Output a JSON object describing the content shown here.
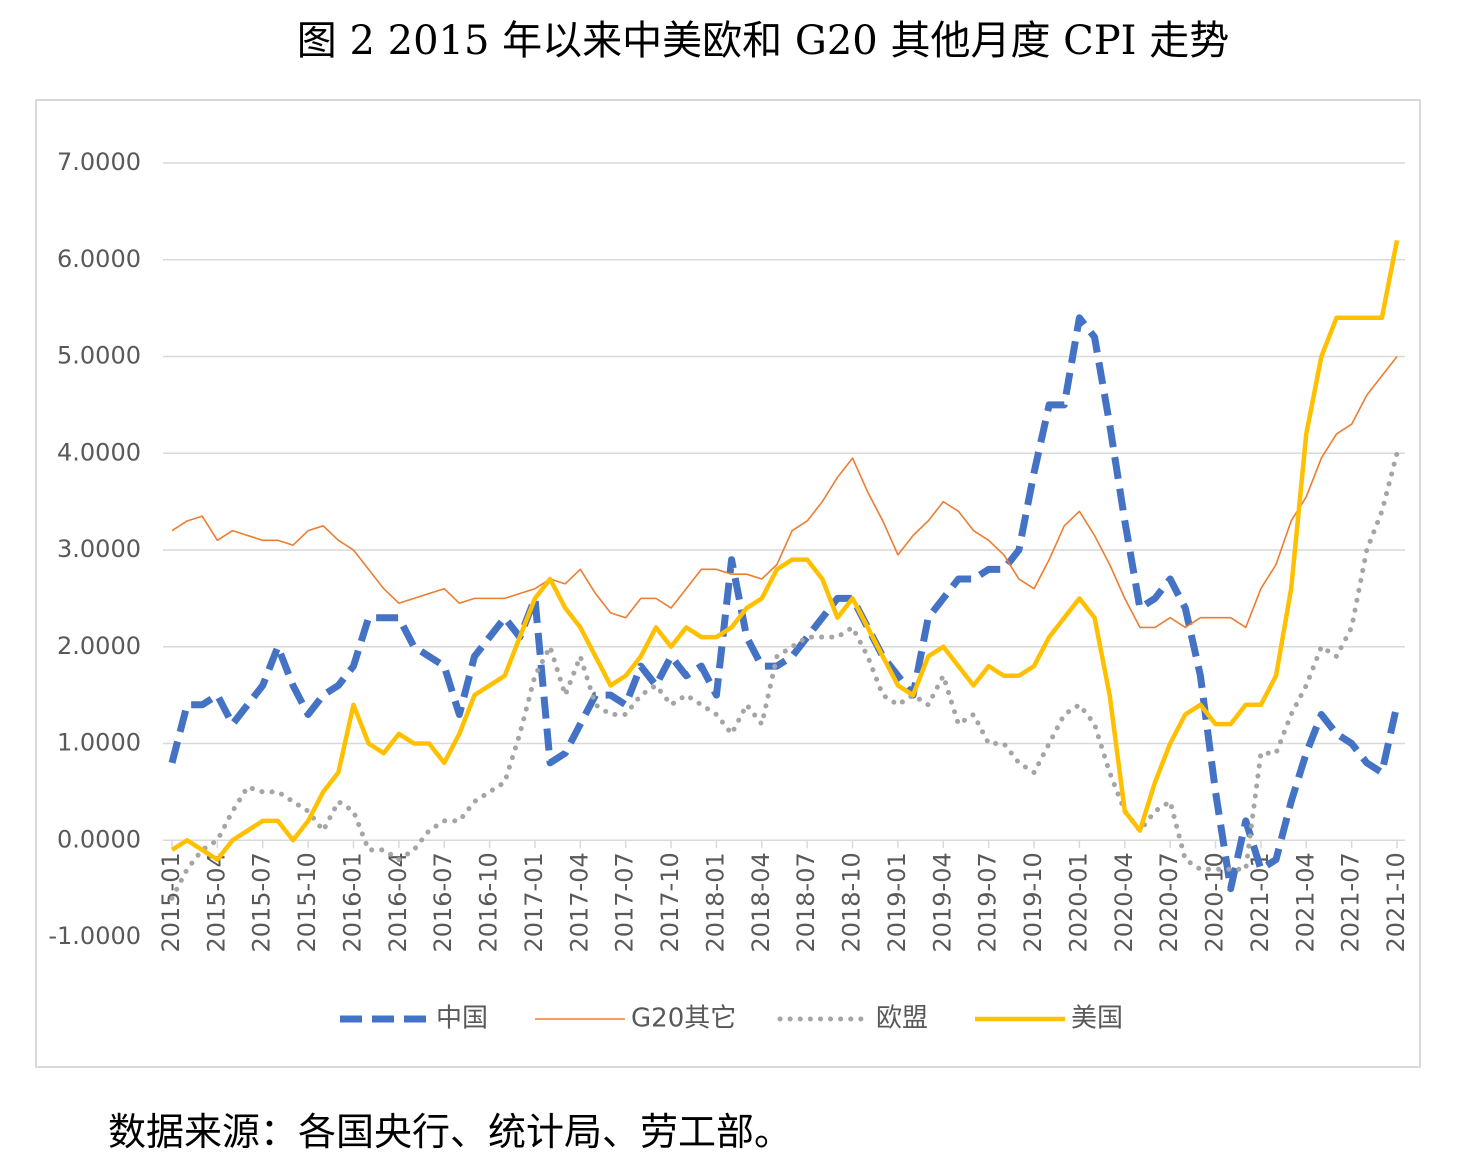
{
  "chart_data": {
    "type": "line",
    "title": "图 2 2015 年以来中美欧和 G20 其他月度 CPI 走势",
    "source": "数据来源：各国央行、统计局、劳工部。",
    "categories": [
      "2015-01",
      null,
      null,
      "2015-04",
      null,
      null,
      "2015-07",
      null,
      null,
      "2015-10",
      null,
      null,
      "2016-01",
      null,
      null,
      "2016-04",
      null,
      null,
      "2016-07",
      null,
      null,
      "2016-10",
      null,
      null,
      "2017-01",
      null,
      null,
      "2017-04",
      null,
      null,
      "2017-07",
      null,
      null,
      "2017-10",
      null,
      null,
      "2018-01",
      null,
      null,
      "2018-04",
      null,
      null,
      "2018-07",
      null,
      null,
      "2018-10",
      null,
      null,
      "2019-01",
      null,
      null,
      "2019-04",
      null,
      null,
      "2019-07",
      null,
      null,
      "2019-10",
      null,
      null,
      "2020-01",
      null,
      null,
      "2020-04",
      null,
      null,
      "2020-07",
      null,
      null,
      "2020-10",
      null,
      null,
      "2021-01",
      null,
      null,
      "2021-04",
      null,
      null,
      "2021-07",
      null,
      null,
      "2021-10"
    ],
    "ylim": [
      -1,
      7
    ],
    "yticks": [
      {
        "value": -1,
        "label": "-1.0000"
      },
      {
        "value": 0,
        "label": "0.0000"
      },
      {
        "value": 1,
        "label": "1.0000"
      },
      {
        "value": 2,
        "label": "2.0000"
      },
      {
        "value": 3,
        "label": "3.0000"
      },
      {
        "value": 4,
        "label": "4.0000"
      },
      {
        "value": 5,
        "label": "5.0000"
      },
      {
        "value": 6,
        "label": "6.0000"
      },
      {
        "value": 7,
        "label": "7.0000"
      }
    ],
    "grid": true,
    "legend": "bottom",
    "series": [
      {
        "name": "中国",
        "color": "#4472c4",
        "style": "dashed",
        "values": [
          0.8,
          1.4,
          1.4,
          1.5,
          1.2,
          1.4,
          1.6,
          2.0,
          1.6,
          1.3,
          1.5,
          1.6,
          1.8,
          2.3,
          2.3,
          2.3,
          2.0,
          1.9,
          1.8,
          1.3,
          1.9,
          2.1,
          2.3,
          2.1,
          2.5,
          0.8,
          0.9,
          1.2,
          1.5,
          1.5,
          1.4,
          1.8,
          1.6,
          1.9,
          1.7,
          1.8,
          1.5,
          2.9,
          2.1,
          1.8,
          1.8,
          1.9,
          2.1,
          2.3,
          2.5,
          2.5,
          2.2,
          1.9,
          1.7,
          1.5,
          2.3,
          2.5,
          2.7,
          2.7,
          2.8,
          2.8,
          3.0,
          3.8,
          4.5,
          4.5,
          5.4,
          5.2,
          4.3,
          3.3,
          2.4,
          2.5,
          2.7,
          2.4,
          1.7,
          0.5,
          -0.5,
          0.2,
          -0.3,
          -0.2,
          0.4,
          0.9,
          1.3,
          1.1,
          1.0,
          0.8,
          0.7,
          1.4
        ]
      },
      {
        "name": "G20其它",
        "color": "#ed7d31",
        "style": "thin",
        "values": [
          3.2,
          3.3,
          3.35,
          3.1,
          3.2,
          3.15,
          3.1,
          3.1,
          3.05,
          3.2,
          3.25,
          3.1,
          3.0,
          2.8,
          2.6,
          2.45,
          2.5,
          2.55,
          2.6,
          2.45,
          2.5,
          2.5,
          2.5,
          2.55,
          2.6,
          2.7,
          2.65,
          2.8,
          2.55,
          2.35,
          2.3,
          2.5,
          2.5,
          2.4,
          2.6,
          2.8,
          2.8,
          2.75,
          2.75,
          2.7,
          2.85,
          3.2,
          3.3,
          3.5,
          3.75,
          3.95,
          3.6,
          3.3,
          2.95,
          3.15,
          3.3,
          3.5,
          3.4,
          3.2,
          3.1,
          2.95,
          2.7,
          2.6,
          2.9,
          3.25,
          3.4,
          3.15,
          2.85,
          2.5,
          2.2,
          2.2,
          2.3,
          2.2,
          2.3,
          2.3,
          2.3,
          2.2,
          2.6,
          2.85,
          3.3,
          3.55,
          3.95,
          4.2,
          4.3,
          4.6,
          4.8,
          5.0
        ]
      },
      {
        "name": "欧盟",
        "color": "#a5a5a5",
        "style": "dotted",
        "values": [
          -0.6,
          -0.3,
          -0.1,
          0.0,
          0.3,
          0.55,
          0.5,
          0.5,
          0.4,
          0.3,
          0.1,
          0.4,
          0.3,
          -0.1,
          -0.1,
          -0.2,
          -0.1,
          0.1,
          0.2,
          0.2,
          0.4,
          0.5,
          0.6,
          1.1,
          1.7,
          2.0,
          1.5,
          1.9,
          1.4,
          1.3,
          1.3,
          1.5,
          1.6,
          1.4,
          1.5,
          1.4,
          1.3,
          1.1,
          1.4,
          1.2,
          1.9,
          2.0,
          2.1,
          2.1,
          2.1,
          2.2,
          1.9,
          1.5,
          1.4,
          1.5,
          1.4,
          1.7,
          1.2,
          1.3,
          1.0,
          1.0,
          0.8,
          0.7,
          1.0,
          1.3,
          1.4,
          1.2,
          0.7,
          0.3,
          0.1,
          0.3,
          0.4,
          -0.2,
          -0.3,
          -0.3,
          -0.3,
          -0.3,
          0.9,
          0.9,
          1.3,
          1.6,
          2.0,
          1.9,
          2.2,
          3.0,
          3.4,
          4.0
        ]
      },
      {
        "name": "美国",
        "color": "#ffc000",
        "style": "solid",
        "values": [
          -0.1,
          0.0,
          -0.1,
          -0.2,
          0.0,
          0.1,
          0.2,
          0.2,
          0.0,
          0.2,
          0.5,
          0.7,
          1.4,
          1.0,
          0.9,
          1.1,
          1.0,
          1.0,
          0.8,
          1.1,
          1.5,
          1.6,
          1.7,
          2.1,
          2.5,
          2.7,
          2.4,
          2.2,
          1.9,
          1.6,
          1.7,
          1.9,
          2.2,
          2.0,
          2.2,
          2.1,
          2.1,
          2.2,
          2.4,
          2.5,
          2.8,
          2.9,
          2.9,
          2.7,
          2.3,
          2.5,
          2.2,
          1.9,
          1.6,
          1.5,
          1.9,
          2.0,
          1.8,
          1.6,
          1.8,
          1.7,
          1.7,
          1.8,
          2.1,
          2.3,
          2.5,
          2.3,
          1.5,
          0.3,
          0.1,
          0.6,
          1.0,
          1.3,
          1.4,
          1.2,
          1.2,
          1.4,
          1.4,
          1.7,
          2.6,
          4.2,
          5.0,
          5.4,
          5.4,
          5.4,
          5.4,
          6.2
        ]
      }
    ]
  }
}
